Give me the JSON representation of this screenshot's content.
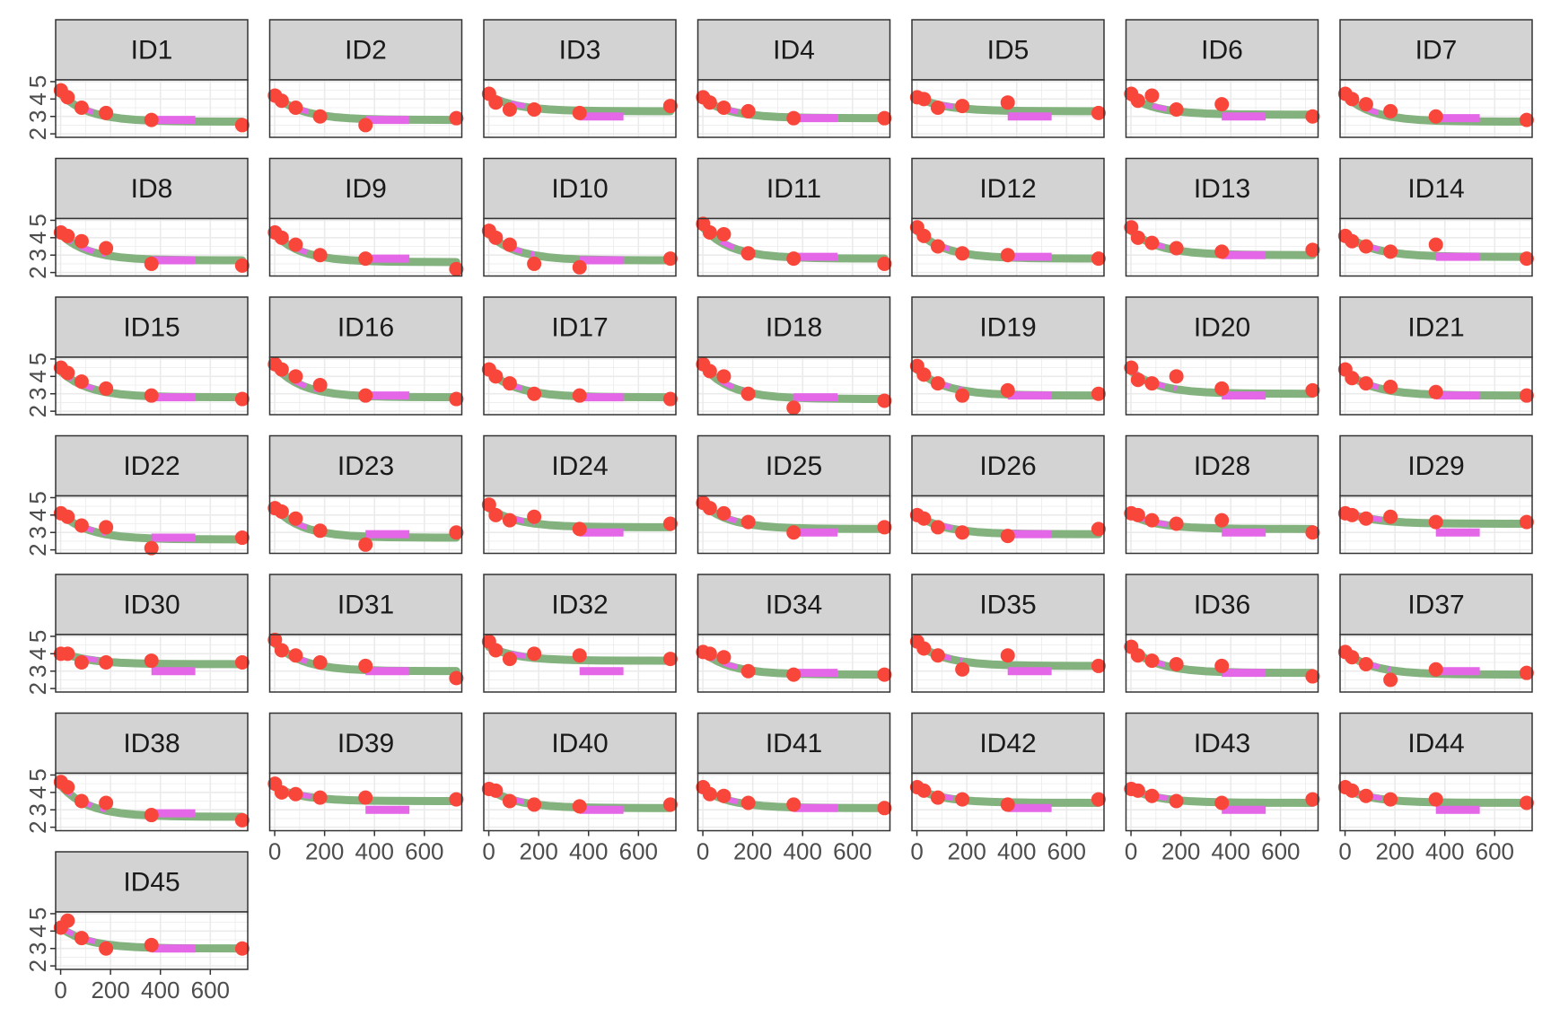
{
  "chart_data": {
    "type": "line",
    "layout": "facet_wrap",
    "facet_columns": 7,
    "x_ticks": [
      0,
      200,
      400,
      600
    ],
    "y_ticks": [
      2,
      3,
      4,
      5
    ],
    "xlim": [
      -20,
      750
    ],
    "ylim": [
      1.8,
      5.1
    ],
    "grid": true,
    "colors": {
      "observed": "#f8473a",
      "fit": "#83b27f",
      "dashed": "#e467e8",
      "strip_fill": "#d3d3d3",
      "grid": "#ebebeb",
      "border": "#333333"
    },
    "observed_x": [
      1,
      28,
      84,
      182,
      364,
      728
    ],
    "fit_x": [
      1,
      28,
      56,
      84,
      112,
      140,
      182,
      240,
      300,
      364,
      450,
      550,
      650,
      728
    ],
    "dashed_x": [
      1,
      28,
      56,
      84,
      112,
      140,
      182
    ],
    "dashed_flat_x": [
      364,
      540
    ],
    "panels": [
      {
        "id": "ID1",
        "observed": [
          4.5,
          4.1,
          3.5,
          3.2,
          2.8,
          2.5
        ],
        "fit": [
          4.3,
          2.7
        ],
        "flat": 2.8
      },
      {
        "id": "ID2",
        "observed": [
          4.2,
          3.9,
          3.5,
          3.0,
          2.5,
          2.9
        ],
        "fit": [
          4.2,
          2.8
        ],
        "flat": 2.8
      },
      {
        "id": "ID3",
        "observed": [
          4.3,
          3.8,
          3.4,
          3.4,
          3.2,
          3.6
        ],
        "fit": [
          4.2,
          3.3
        ],
        "flat": 3.0
      },
      {
        "id": "ID4",
        "observed": [
          4.1,
          3.8,
          3.5,
          3.3,
          2.9,
          2.9
        ],
        "fit": [
          4.0,
          2.9
        ],
        "flat": 2.9
      },
      {
        "id": "ID5",
        "observed": [
          4.1,
          4.0,
          3.5,
          3.6,
          3.8,
          3.2
        ],
        "fit": [
          4.1,
          3.3
        ],
        "flat": 3.0
      },
      {
        "id": "ID6",
        "observed": [
          4.3,
          3.9,
          4.2,
          3.4,
          3.7,
          3.0
        ],
        "fit": [
          4.1,
          3.1
        ],
        "flat": 3.0
      },
      {
        "id": "ID7",
        "observed": [
          4.3,
          4.0,
          3.7,
          3.3,
          3.0,
          2.8
        ],
        "fit": [
          4.2,
          2.7
        ],
        "flat": 2.9
      },
      {
        "id": "ID8",
        "observed": [
          4.3,
          4.1,
          3.8,
          3.4,
          2.5,
          2.4
        ],
        "fit": [
          4.2,
          2.7
        ],
        "flat": 2.7
      },
      {
        "id": "ID9",
        "observed": [
          4.3,
          4.0,
          3.6,
          3.0,
          2.8,
          2.2
        ],
        "fit": [
          4.2,
          2.6
        ],
        "flat": 2.8
      },
      {
        "id": "ID10",
        "observed": [
          4.4,
          4.0,
          3.6,
          2.5,
          2.3,
          2.8
        ],
        "fit": [
          4.2,
          2.7
        ],
        "flat": 2.7
      },
      {
        "id": "ID11",
        "observed": [
          4.8,
          4.3,
          4.2,
          3.1,
          2.8,
          2.5
        ],
        "fit": [
          4.6,
          2.8
        ],
        "flat": 2.9
      },
      {
        "id": "ID12",
        "observed": [
          4.6,
          4.1,
          3.5,
          3.1,
          3.0,
          2.8
        ],
        "fit": [
          4.4,
          2.8
        ],
        "flat": 2.9
      },
      {
        "id": "ID13",
        "observed": [
          4.6,
          4.0,
          3.7,
          3.4,
          3.2,
          3.3
        ],
        "fit": [
          4.4,
          3.0
        ],
        "flat": 3.0
      },
      {
        "id": "ID14",
        "observed": [
          4.1,
          3.8,
          3.5,
          3.2,
          3.6,
          2.8
        ],
        "fit": [
          4.2,
          2.9
        ],
        "flat": 2.9
      },
      {
        "id": "ID15",
        "observed": [
          4.5,
          4.2,
          3.7,
          3.3,
          2.9,
          2.7
        ],
        "fit": [
          4.3,
          2.8
        ],
        "flat": 2.8
      },
      {
        "id": "ID16",
        "observed": [
          4.7,
          4.4,
          4.0,
          3.5,
          2.9,
          2.7
        ],
        "fit": [
          4.6,
          2.8
        ],
        "flat": 2.9
      },
      {
        "id": "ID17",
        "observed": [
          4.4,
          4.0,
          3.6,
          3.0,
          2.9,
          2.7
        ],
        "fit": [
          4.3,
          2.8
        ],
        "flat": 2.8
      },
      {
        "id": "ID18",
        "observed": [
          4.7,
          4.3,
          4.0,
          3.0,
          2.2,
          2.6
        ],
        "fit": [
          4.6,
          2.7
        ],
        "flat": 2.8
      },
      {
        "id": "ID19",
        "observed": [
          4.6,
          4.1,
          3.6,
          2.9,
          3.2,
          3.0
        ],
        "fit": [
          4.4,
          2.9
        ],
        "flat": 2.9
      },
      {
        "id": "ID20",
        "observed": [
          4.5,
          3.8,
          3.6,
          4.0,
          3.3,
          3.2
        ],
        "fit": [
          4.3,
          3.0
        ],
        "flat": 2.9
      },
      {
        "id": "ID21",
        "observed": [
          4.4,
          3.9,
          3.6,
          3.4,
          3.1,
          2.9
        ],
        "fit": [
          4.3,
          2.9
        ],
        "flat": 2.9
      },
      {
        "id": "ID22",
        "observed": [
          4.1,
          3.9,
          3.4,
          3.3,
          2.1,
          2.7
        ],
        "fit": [
          4.1,
          2.6
        ],
        "flat": 2.7
      },
      {
        "id": "ID23",
        "observed": [
          4.4,
          4.2,
          3.8,
          3.1,
          2.3,
          3.0
        ],
        "fit": [
          4.4,
          2.7
        ],
        "flat": 2.9
      },
      {
        "id": "ID24",
        "observed": [
          4.6,
          4.0,
          3.7,
          3.9,
          3.2,
          3.5
        ],
        "fit": [
          4.4,
          3.3
        ],
        "flat": 3.0
      },
      {
        "id": "ID25",
        "observed": [
          4.7,
          4.4,
          4.1,
          3.6,
          3.0,
          3.3
        ],
        "fit": [
          4.6,
          3.2
        ],
        "flat": 3.0
      },
      {
        "id": "ID26",
        "observed": [
          4.0,
          3.8,
          3.3,
          3.0,
          2.8,
          3.2
        ],
        "fit": [
          4.0,
          2.9
        ],
        "flat": 2.9
      },
      {
        "id": "ID28",
        "observed": [
          4.1,
          4.0,
          3.7,
          3.5,
          3.7,
          3.0
        ],
        "fit": [
          4.0,
          3.2
        ],
        "flat": 3.0
      },
      {
        "id": "ID29",
        "observed": [
          4.1,
          4.0,
          3.8,
          3.9,
          3.6,
          3.6
        ],
        "fit": [
          4.2,
          3.5
        ],
        "flat": 3.0
      },
      {
        "id": "ID30",
        "observed": [
          4.0,
          4.0,
          3.5,
          3.5,
          3.6,
          3.5
        ],
        "fit": [
          4.1,
          3.4
        ],
        "flat": 3.0
      },
      {
        "id": "ID31",
        "observed": [
          4.8,
          4.2,
          3.9,
          3.5,
          3.3,
          2.6
        ],
        "fit": [
          4.6,
          3.0
        ],
        "flat": 3.0
      },
      {
        "id": "ID32",
        "observed": [
          4.7,
          4.2,
          3.7,
          4.0,
          3.9,
          3.7
        ],
        "fit": [
          4.4,
          3.6
        ],
        "flat": 3.0
      },
      {
        "id": "ID34",
        "observed": [
          4.1,
          4.0,
          3.8,
          3.0,
          2.8,
          2.8
        ],
        "fit": [
          4.1,
          2.8
        ],
        "flat": 2.9
      },
      {
        "id": "ID35",
        "observed": [
          4.7,
          4.3,
          3.9,
          3.1,
          3.9,
          3.3
        ],
        "fit": [
          4.6,
          3.3
        ],
        "flat": 3.0
      },
      {
        "id": "ID36",
        "observed": [
          4.4,
          3.9,
          3.6,
          3.4,
          3.3,
          2.7
        ],
        "fit": [
          4.3,
          2.9
        ],
        "flat": 2.9
      },
      {
        "id": "ID37",
        "observed": [
          4.1,
          3.8,
          3.4,
          2.5,
          3.1,
          2.9
        ],
        "fit": [
          4.1,
          2.8
        ],
        "flat": 3.0
      },
      {
        "id": "ID38",
        "observed": [
          4.6,
          4.3,
          3.5,
          3.4,
          2.7,
          2.4
        ],
        "fit": [
          4.4,
          2.6
        ],
        "flat": 2.8
      },
      {
        "id": "ID39",
        "observed": [
          4.5,
          4.0,
          3.9,
          3.7,
          3.7,
          3.6
        ],
        "fit": [
          4.3,
          3.5
        ],
        "flat": 3.0
      },
      {
        "id": "ID40",
        "observed": [
          4.2,
          4.1,
          3.5,
          3.3,
          3.2,
          3.3
        ],
        "fit": [
          4.2,
          3.1
        ],
        "flat": 3.0
      },
      {
        "id": "ID41",
        "observed": [
          4.3,
          3.9,
          3.8,
          3.4,
          3.3,
          3.1
        ],
        "fit": [
          4.2,
          3.1
        ],
        "flat": 3.1
      },
      {
        "id": "ID42",
        "observed": [
          4.3,
          4.1,
          3.7,
          3.6,
          3.3,
          3.6
        ],
        "fit": [
          4.2,
          3.4
        ],
        "flat": 3.1
      },
      {
        "id": "ID43",
        "observed": [
          4.2,
          4.1,
          3.8,
          3.5,
          3.4,
          3.6
        ],
        "fit": [
          4.2,
          3.4
        ],
        "flat": 3.0
      },
      {
        "id": "ID44",
        "observed": [
          4.3,
          4.1,
          3.8,
          3.6,
          3.6,
          3.4
        ],
        "fit": [
          4.2,
          3.4
        ],
        "flat": 3.0
      },
      {
        "id": "ID45",
        "observed": [
          4.2,
          4.6,
          3.6,
          3.0,
          3.2,
          3.0
        ],
        "fit": [
          4.2,
          3.0
        ],
        "flat": 3.0
      }
    ]
  }
}
